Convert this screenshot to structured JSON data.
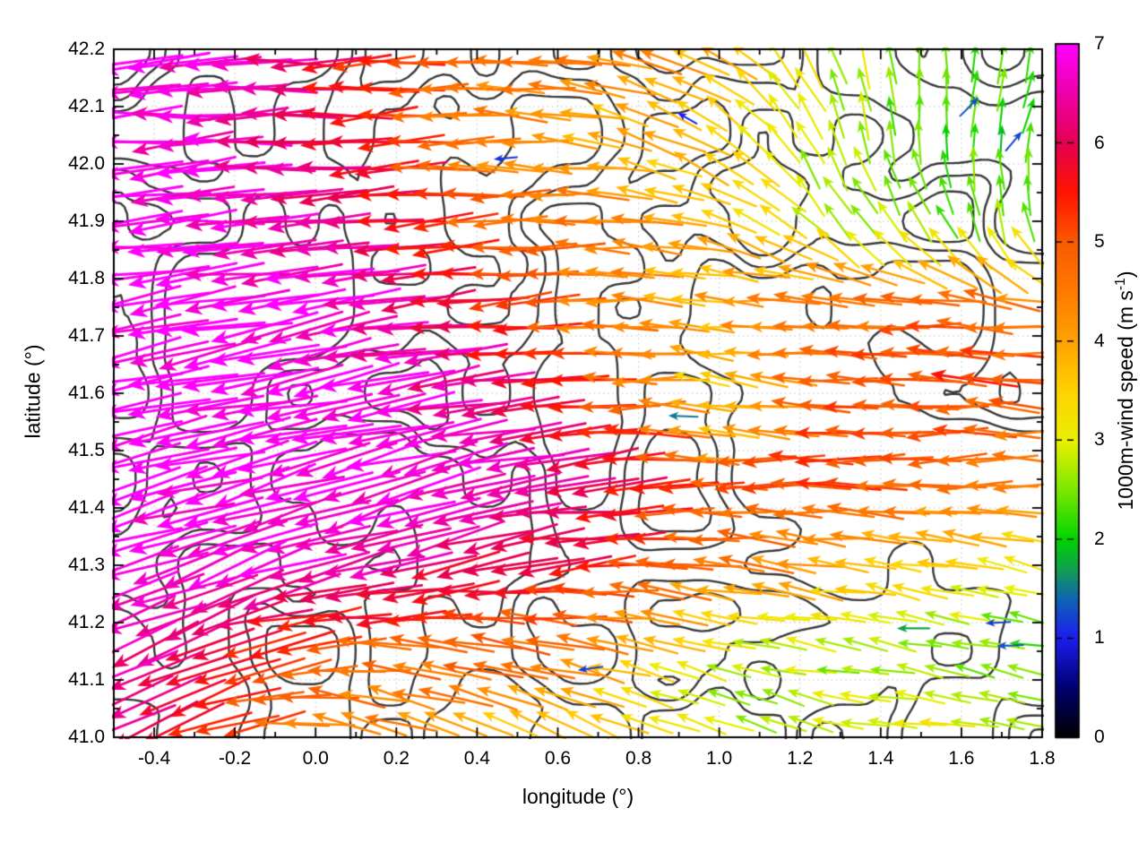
{
  "chart_data": {
    "type": "quiver",
    "title": "",
    "xlabel": "longitude (°)",
    "ylabel": "latitude (°)",
    "x_range": [
      -0.5,
      1.8
    ],
    "y_range": [
      41.0,
      42.2
    ],
    "x_ticks": [
      "-0.4",
      "-0.2",
      "0.0",
      "0.2",
      "0.4",
      "0.6",
      "0.8",
      "1.0",
      "1.2",
      "1.4",
      "1.6",
      "1.8"
    ],
    "x_tick_values": [
      -0.4,
      -0.2,
      0.0,
      0.2,
      0.4,
      0.6,
      0.8,
      1.0,
      1.2,
      1.4,
      1.6,
      1.8
    ],
    "y_ticks": [
      "42.2",
      "42.1",
      "42.0",
      "41.9",
      "41.8",
      "41.7",
      "41.6",
      "41.5",
      "41.4",
      "41.3",
      "41.2",
      "41.1",
      "41.0"
    ],
    "y_tick_values": [
      42.2,
      42.1,
      42.0,
      41.9,
      41.8,
      41.7,
      41.6,
      41.5,
      41.4,
      41.3,
      41.2,
      41.1,
      41.0
    ],
    "x_minor_step": 0.1,
    "y_minor_step": 0.05,
    "grid": {
      "show": true,
      "style": "dotted",
      "color": "#c3c3c3"
    },
    "colorbar": {
      "label_prefix": "1000m-wind speed (m s",
      "label_sup": "-1",
      "label_suffix": ")",
      "range": [
        0,
        7
      ],
      "ticks": [
        "0",
        "1",
        "2",
        "3",
        "4",
        "5",
        "6",
        "7"
      ],
      "tick_values": [
        0,
        1,
        2,
        3,
        4,
        5,
        6,
        7
      ],
      "palette_stops": [
        [
          0.0,
          "#000000"
        ],
        [
          0.5,
          "#000070"
        ],
        [
          1.0,
          "#1c1cf0"
        ],
        [
          1.4,
          "#0f64b4"
        ],
        [
          1.7,
          "#10a050"
        ],
        [
          2.0,
          "#00d200"
        ],
        [
          2.5,
          "#7ce800"
        ],
        [
          3.0,
          "#e9f000"
        ],
        [
          3.5,
          "#ffd200"
        ],
        [
          4.0,
          "#ffa200"
        ],
        [
          4.5,
          "#ff7a00"
        ],
        [
          5.0,
          "#fa5a00"
        ],
        [
          5.5,
          "#ff1400"
        ],
        [
          6.0,
          "#e60052"
        ],
        [
          6.5,
          "#ee00a8"
        ],
        [
          7.0,
          "#ff00ff"
        ]
      ]
    },
    "field": {
      "lons": [
        -0.5,
        -0.2,
        0.1,
        0.4,
        0.7,
        1.0,
        1.3,
        1.6,
        1.8
      ],
      "lats": [
        42.2,
        42.05,
        41.9,
        41.75,
        41.6,
        41.45,
        41.3,
        41.15,
        41.0
      ],
      "speed_ms": [
        [
          6.8,
          6.8,
          5.5,
          4.6,
          4.4,
          4.0,
          3.0,
          2.3,
          2.2
        ],
        [
          6.8,
          6.8,
          5.8,
          4.3,
          4.0,
          3.4,
          2.5,
          2.2,
          2.0
        ],
        [
          6.9,
          6.9,
          6.3,
          5.0,
          4.5,
          3.7,
          2.8,
          2.5,
          2.3
        ],
        [
          7.0,
          7.0,
          6.8,
          5.8,
          4.3,
          4.0,
          4.6,
          5.0,
          4.6
        ],
        [
          7.0,
          7.0,
          7.0,
          6.5,
          5.4,
          3.2,
          5.0,
          5.3,
          5.0
        ],
        [
          7.0,
          7.0,
          7.0,
          6.8,
          6.2,
          4.8,
          5.2,
          4.6,
          4.2
        ],
        [
          6.6,
          6.9,
          6.6,
          6.0,
          5.5,
          4.6,
          4.0,
          3.4,
          3.0
        ],
        [
          6.8,
          5.6,
          4.8,
          5.0,
          4.3,
          3.0,
          2.6,
          2.4,
          2.2
        ],
        [
          6.5,
          5.0,
          4.4,
          3.8,
          3.4,
          2.8,
          2.8,
          3.2,
          3.0
        ]
      ],
      "dir_screen_deg": [
        [
          182,
          183,
          182,
          178,
          172,
          150,
          110,
          85,
          80
        ],
        [
          183,
          184,
          184,
          180,
          170,
          145,
          105,
          90,
          75
        ],
        [
          185,
          185,
          186,
          182,
          176,
          160,
          130,
          115,
          100
        ],
        [
          188,
          189,
          190,
          186,
          180,
          176,
          178,
          176,
          172
        ],
        [
          191,
          192,
          193,
          190,
          184,
          172,
          181,
          179,
          177
        ],
        [
          193,
          195,
          196,
          192,
          187,
          179,
          182,
          181,
          179
        ],
        [
          197,
          199,
          197,
          191,
          184,
          174,
          172,
          170,
          167
        ],
        [
          206,
          201,
          178,
          172,
          168,
          166,
          171,
          169,
          167
        ],
        [
          211,
          196,
          164,
          150,
          152,
          159,
          169,
          171,
          169
        ]
      ]
    },
    "outliers": [
      {
        "lon": 0.47,
        "lat": 42.01,
        "speed": 1.1,
        "dir_deg": 185
      },
      {
        "lon": 0.92,
        "lat": 42.08,
        "speed": 1.0,
        "dir_deg": 150
      },
      {
        "lon": 1.62,
        "lat": 42.1,
        "speed": 1.3,
        "dir_deg": 45
      },
      {
        "lon": 1.73,
        "lat": 42.04,
        "speed": 1.2,
        "dir_deg": 50
      },
      {
        "lon": 0.91,
        "lat": 41.56,
        "speed": 1.5,
        "dir_deg": 178
      },
      {
        "lon": 0.68,
        "lat": 41.12,
        "speed": 1.2,
        "dir_deg": 188
      },
      {
        "lon": 1.69,
        "lat": 41.2,
        "speed": 1.2,
        "dir_deg": 183
      },
      {
        "lon": 1.72,
        "lat": 41.16,
        "speed": 1.3,
        "dir_deg": 182
      },
      {
        "lon": 1.48,
        "lat": 41.19,
        "speed": 1.7,
        "dir_deg": 180
      }
    ],
    "contours": {
      "color": "#3b3b3b",
      "line_width": 2.4,
      "n_levels": 3
    },
    "style": {
      "axis_color": "#000000",
      "background": "#ffffff",
      "arrow_grid_nx": 34,
      "arrow_grid_ny": 26,
      "arrow_length_base": 8,
      "arrow_length_per_speed": 16.5,
      "seed": 20240,
      "dir_jitter_deg": 16,
      "speed_jitter": 0.7
    }
  }
}
